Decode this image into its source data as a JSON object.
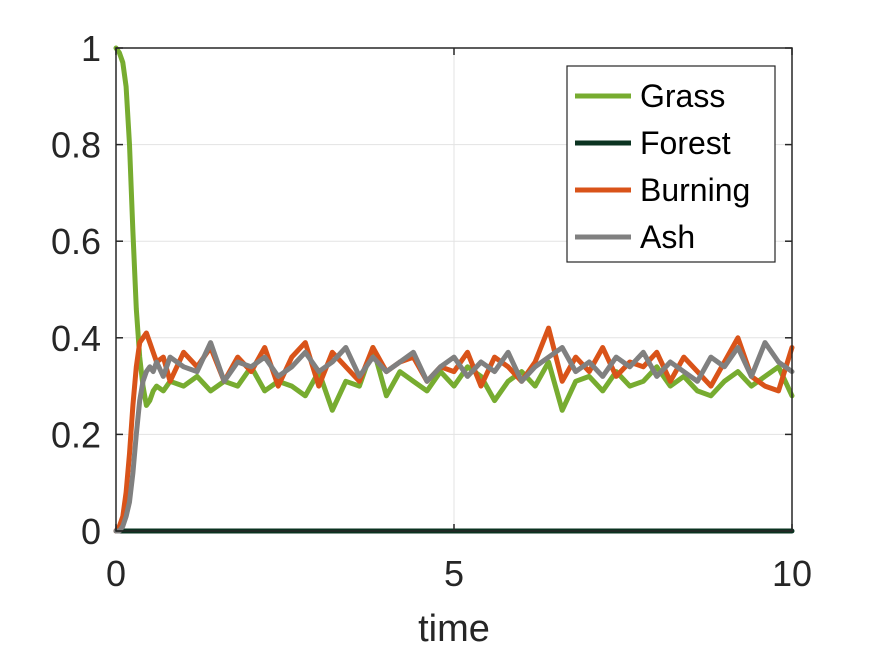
{
  "chart_data": {
    "type": "line",
    "title": "",
    "xlabel": "time",
    "ylabel": "",
    "xlim": [
      0,
      10
    ],
    "ylim": [
      0,
      1
    ],
    "xticks": [
      0,
      5,
      10
    ],
    "yticks": [
      0,
      0.2,
      0.4,
      0.6,
      0.8,
      1
    ],
    "xtick_labels": [
      "0",
      "5",
      "10"
    ],
    "ytick_labels": [
      "0",
      "0.2",
      "0.4",
      "0.6",
      "0.8",
      "1"
    ],
    "grid": true,
    "legend_position": "top-right",
    "series": [
      {
        "name": "Grass",
        "color": "#77AC30",
        "x": [
          0,
          0.05,
          0.1,
          0.15,
          0.2,
          0.25,
          0.3,
          0.35,
          0.4,
          0.45,
          0.5,
          0.55,
          0.6,
          0.7,
          0.8,
          1.0,
          1.2,
          1.4,
          1.6,
          1.8,
          2.0,
          2.2,
          2.4,
          2.6,
          2.8,
          3.0,
          3.2,
          3.4,
          3.6,
          3.8,
          4.0,
          4.2,
          4.4,
          4.6,
          4.8,
          5.0,
          5.2,
          5.4,
          5.6,
          5.8,
          6.0,
          6.2,
          6.4,
          6.6,
          6.8,
          7.0,
          7.2,
          7.4,
          7.6,
          7.8,
          8.0,
          8.2,
          8.4,
          8.6,
          8.8,
          9.0,
          9.2,
          9.4,
          9.6,
          9.8,
          10.0
        ],
        "y": [
          1.0,
          0.99,
          0.97,
          0.92,
          0.8,
          0.62,
          0.46,
          0.36,
          0.3,
          0.26,
          0.27,
          0.29,
          0.3,
          0.29,
          0.31,
          0.3,
          0.32,
          0.29,
          0.31,
          0.3,
          0.34,
          0.29,
          0.31,
          0.3,
          0.28,
          0.33,
          0.25,
          0.31,
          0.3,
          0.38,
          0.28,
          0.33,
          0.31,
          0.29,
          0.33,
          0.3,
          0.34,
          0.32,
          0.27,
          0.31,
          0.33,
          0.3,
          0.35,
          0.25,
          0.31,
          0.32,
          0.29,
          0.33,
          0.3,
          0.31,
          0.34,
          0.3,
          0.32,
          0.29,
          0.28,
          0.31,
          0.33,
          0.3,
          0.32,
          0.34,
          0.28
        ]
      },
      {
        "name": "Forest",
        "color": "#0B3321",
        "x": [
          0,
          10
        ],
        "y": [
          0,
          0
        ]
      },
      {
        "name": "Burning",
        "color": "#D95319",
        "x": [
          0,
          0.05,
          0.1,
          0.15,
          0.2,
          0.25,
          0.3,
          0.35,
          0.4,
          0.45,
          0.5,
          0.55,
          0.6,
          0.7,
          0.8,
          1.0,
          1.2,
          1.4,
          1.6,
          1.8,
          2.0,
          2.2,
          2.4,
          2.6,
          2.8,
          3.0,
          3.2,
          3.4,
          3.6,
          3.8,
          4.0,
          4.2,
          4.4,
          4.6,
          4.8,
          5.0,
          5.2,
          5.4,
          5.6,
          5.8,
          6.0,
          6.2,
          6.4,
          6.6,
          6.8,
          7.0,
          7.2,
          7.4,
          7.6,
          7.8,
          8.0,
          8.2,
          8.4,
          8.6,
          8.8,
          9.0,
          9.2,
          9.4,
          9.6,
          9.8,
          10.0
        ],
        "y": [
          0,
          0.01,
          0.03,
          0.08,
          0.16,
          0.26,
          0.34,
          0.39,
          0.4,
          0.41,
          0.39,
          0.37,
          0.35,
          0.36,
          0.31,
          0.37,
          0.34,
          0.38,
          0.31,
          0.36,
          0.33,
          0.38,
          0.3,
          0.36,
          0.39,
          0.3,
          0.37,
          0.34,
          0.31,
          0.38,
          0.33,
          0.35,
          0.36,
          0.31,
          0.34,
          0.33,
          0.37,
          0.3,
          0.36,
          0.34,
          0.31,
          0.35,
          0.42,
          0.31,
          0.36,
          0.33,
          0.38,
          0.32,
          0.35,
          0.34,
          0.37,
          0.31,
          0.36,
          0.33,
          0.3,
          0.35,
          0.4,
          0.32,
          0.3,
          0.29,
          0.38
        ]
      },
      {
        "name": "Ash",
        "color": "#808080",
        "x": [
          0,
          0.05,
          0.1,
          0.15,
          0.2,
          0.25,
          0.3,
          0.35,
          0.4,
          0.45,
          0.5,
          0.55,
          0.6,
          0.7,
          0.8,
          1.0,
          1.2,
          1.4,
          1.6,
          1.8,
          2.0,
          2.2,
          2.4,
          2.6,
          2.8,
          3.0,
          3.2,
          3.4,
          3.6,
          3.8,
          4.0,
          4.2,
          4.4,
          4.6,
          4.8,
          5.0,
          5.2,
          5.4,
          5.6,
          5.8,
          6.0,
          6.2,
          6.4,
          6.6,
          6.8,
          7.0,
          7.2,
          7.4,
          7.6,
          7.8,
          8.0,
          8.2,
          8.4,
          8.6,
          8.8,
          9.0,
          9.2,
          9.4,
          9.6,
          9.8,
          10.0
        ],
        "y": [
          0,
          0.0,
          0.01,
          0.03,
          0.06,
          0.12,
          0.2,
          0.27,
          0.31,
          0.33,
          0.34,
          0.33,
          0.35,
          0.32,
          0.36,
          0.34,
          0.33,
          0.39,
          0.31,
          0.35,
          0.34,
          0.36,
          0.32,
          0.34,
          0.37,
          0.33,
          0.35,
          0.38,
          0.32,
          0.36,
          0.33,
          0.35,
          0.37,
          0.31,
          0.34,
          0.36,
          0.32,
          0.35,
          0.33,
          0.37,
          0.31,
          0.34,
          0.36,
          0.38,
          0.33,
          0.35,
          0.32,
          0.36,
          0.34,
          0.37,
          0.32,
          0.35,
          0.33,
          0.31,
          0.36,
          0.34,
          0.38,
          0.32,
          0.39,
          0.35,
          0.33
        ]
      }
    ]
  }
}
